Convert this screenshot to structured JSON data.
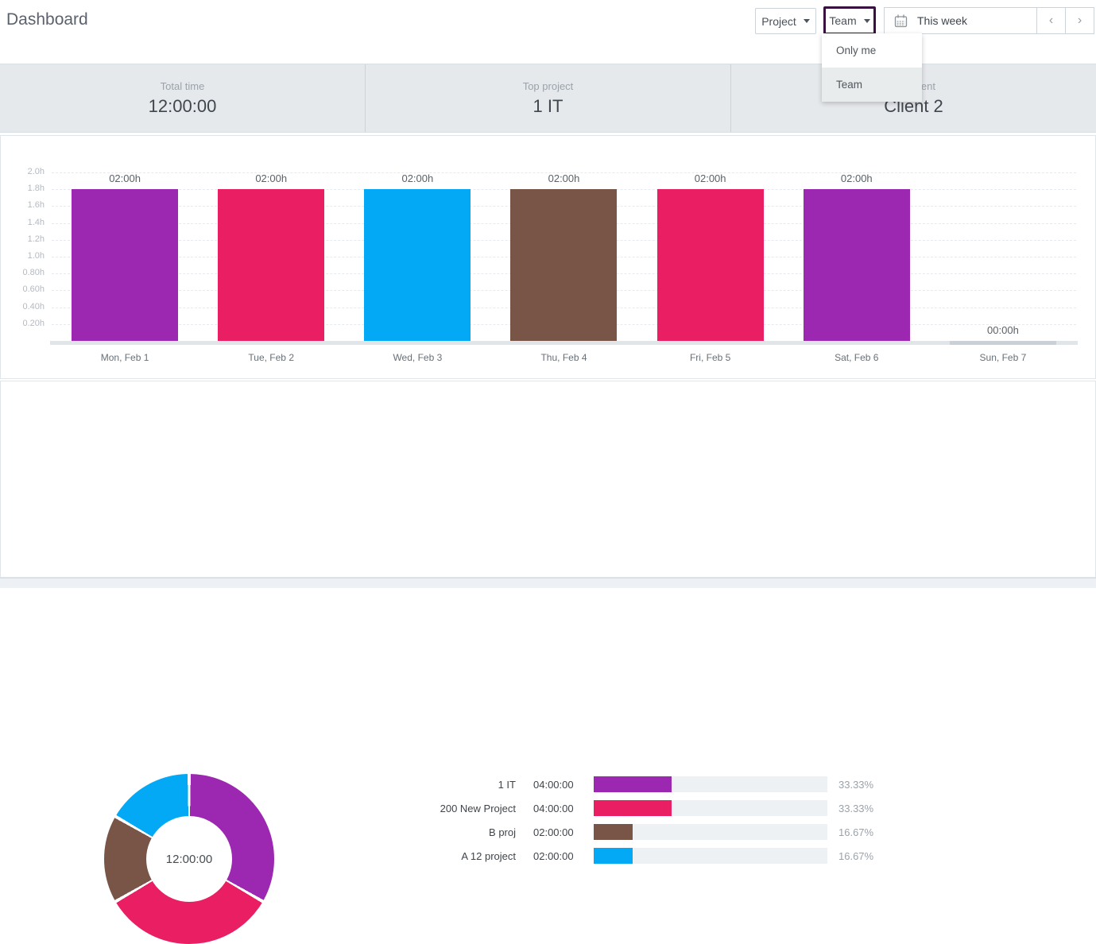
{
  "page": {
    "title": "Dashboard"
  },
  "toolbar": {
    "project_label": "Project",
    "team_label": "Team",
    "date_label": "This week",
    "prev_label": "‹",
    "next_label": "›"
  },
  "team_dropdown": {
    "items": [
      {
        "label": "Only me",
        "selected": false
      },
      {
        "label": "Team",
        "selected": true
      }
    ]
  },
  "summary_cards": [
    {
      "label": "Total time",
      "value": "12:00:00"
    },
    {
      "label": "Top project",
      "value": "1 IT"
    },
    {
      "label": "Top client",
      "value": "Client 2"
    }
  ],
  "colors": {
    "focus_border": "#3a1042",
    "card_bg": "#e6e9ec",
    "zero_bar": "#c9d1d8",
    "baseline": "#dfe5e9",
    "legend_track": "#eef1f4"
  },
  "chart_data": [
    {
      "type": "bar",
      "title": "",
      "categories": [
        "Mon, Feb 1",
        "Tue, Feb 2",
        "Wed, Feb 3",
        "Thu, Feb 4",
        "Fri, Feb 5",
        "Sat, Feb 6",
        "Sun, Feb 7"
      ],
      "values_hours": [
        2,
        2,
        2,
        2,
        2,
        2,
        0
      ],
      "bar_labels": [
        "02:00h",
        "02:00h",
        "02:00h",
        "02:00h",
        "02:00h",
        "02:00h",
        "00:00h"
      ],
      "bar_colors": [
        "#9c27b0",
        "#e91e63",
        "#03a9f4",
        "#795548",
        "#e91e63",
        "#9c27b0",
        "#c9d1d8"
      ],
      "xlabel": "",
      "ylabel": "",
      "ylim": [
        0,
        2.16
      ],
      "grid": "horizontal-dashed",
      "yticks": [
        {
          "value": 0.2,
          "label": "0.20h"
        },
        {
          "value": 0.4,
          "label": "0.40h"
        },
        {
          "value": 0.6,
          "label": "0.60h"
        },
        {
          "value": 0.8,
          "label": "0.80h"
        },
        {
          "value": 1.0,
          "label": "1.0h"
        },
        {
          "value": 1.2,
          "label": "1.2h"
        },
        {
          "value": 1.4,
          "label": "1.4h"
        },
        {
          "value": 1.6,
          "label": "1.6h"
        },
        {
          "value": 1.8,
          "label": "1.8h"
        },
        {
          "value": 2.0,
          "label": "2.0h"
        }
      ]
    },
    {
      "type": "pie",
      "style": "donut",
      "center_label": "12:00:00",
      "legend_position": "right",
      "series": [
        {
          "name": "1 IT",
          "time": "04:00:00",
          "percent": 33.33,
          "percent_label": "33.33%",
          "color": "#9c27b0"
        },
        {
          "name": "200 New Project",
          "time": "04:00:00",
          "percent": 33.33,
          "percent_label": "33.33%",
          "color": "#e91e63"
        },
        {
          "name": "B proj",
          "time": "02:00:00",
          "percent": 16.67,
          "percent_label": "16.67%",
          "color": "#795548"
        },
        {
          "name": "A 12 project",
          "time": "02:00:00",
          "percent": 16.67,
          "percent_label": "16.67%",
          "color": "#03a9f4"
        }
      ]
    }
  ]
}
